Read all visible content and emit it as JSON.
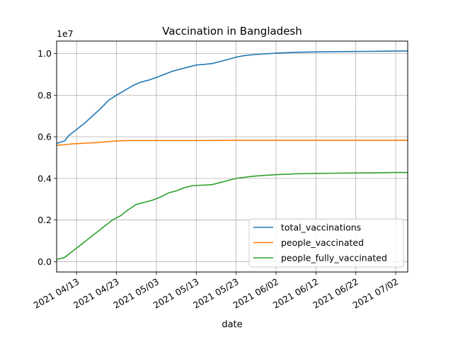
{
  "chart_data": {
    "type": "line",
    "title": "Vaccination in Bangladesh",
    "xlabel": "date",
    "ylabel": "",
    "y_multiplier_label": "1e7",
    "y_scale": 10000000,
    "ylim": [
      -0.05,
      1.06
    ],
    "xlim": [
      "2021-04-08",
      "2021-07-05"
    ],
    "yticks": [
      0.0,
      0.2,
      0.4,
      0.6,
      0.8,
      1.0
    ],
    "ytick_labels": [
      "0.0",
      "0.2",
      "0.4",
      "0.6",
      "0.8",
      "1.0"
    ],
    "xticks": [
      "2021-04-13",
      "2021-04-23",
      "2021-05-03",
      "2021-05-13",
      "2021-05-23",
      "2021-06-02",
      "2021-06-12",
      "2021-06-22",
      "2021-07-02"
    ],
    "xtick_labels": [
      "2021 04/13",
      "2021 04/23",
      "2021 05/03",
      "2021 05/13",
      "2021 05/23",
      "2021 06/02",
      "2021 06/12",
      "2021 06/22",
      "2021 07/02"
    ],
    "grid": true,
    "legend_position": "lower-right",
    "series": [
      {
        "name": "total_vaccinations",
        "color": "#1f77b4",
        "points": [
          [
            "2021-04-08",
            0.568
          ],
          [
            "2021-04-10",
            0.58
          ],
          [
            "2021-04-11",
            0.605
          ],
          [
            "2021-04-13",
            0.635
          ],
          [
            "2021-04-15",
            0.665
          ],
          [
            "2021-04-17",
            0.7
          ],
          [
            "2021-04-19",
            0.735
          ],
          [
            "2021-04-21",
            0.775
          ],
          [
            "2021-04-23",
            0.8
          ],
          [
            "2021-04-25",
            0.822
          ],
          [
            "2021-04-27",
            0.845
          ],
          [
            "2021-04-29",
            0.862
          ],
          [
            "2021-05-01",
            0.872
          ],
          [
            "2021-05-03",
            0.885
          ],
          [
            "2021-05-05",
            0.9
          ],
          [
            "2021-05-07",
            0.915
          ],
          [
            "2021-05-09",
            0.925
          ],
          [
            "2021-05-11",
            0.935
          ],
          [
            "2021-05-13",
            0.945
          ],
          [
            "2021-05-15",
            0.948
          ],
          [
            "2021-05-17",
            0.952
          ],
          [
            "2021-05-19",
            0.962
          ],
          [
            "2021-05-21",
            0.972
          ],
          [
            "2021-05-23",
            0.983
          ],
          [
            "2021-05-25",
            0.99
          ],
          [
            "2021-05-27",
            0.994
          ],
          [
            "2021-05-29",
            0.997
          ],
          [
            "2021-06-02",
            1.002
          ],
          [
            "2021-06-07",
            1.006
          ],
          [
            "2021-06-12",
            1.008
          ],
          [
            "2021-06-17",
            1.009
          ],
          [
            "2021-06-22",
            1.01
          ],
          [
            "2021-06-27",
            1.011
          ],
          [
            "2021-07-02",
            1.012
          ],
          [
            "2021-07-05",
            1.012
          ]
        ]
      },
      {
        "name": "people_vaccinated",
        "color": "#ff7f0e",
        "points": [
          [
            "2021-04-08",
            0.559
          ],
          [
            "2021-04-10",
            0.562
          ],
          [
            "2021-04-12",
            0.566
          ],
          [
            "2021-04-15",
            0.569
          ],
          [
            "2021-04-18",
            0.572
          ],
          [
            "2021-04-21",
            0.577
          ],
          [
            "2021-04-24",
            0.581
          ],
          [
            "2021-04-26",
            0.582
          ],
          [
            "2021-05-03",
            0.582
          ],
          [
            "2021-05-13",
            0.582
          ],
          [
            "2021-05-23",
            0.583
          ],
          [
            "2021-06-02",
            0.583
          ],
          [
            "2021-06-12",
            0.583
          ],
          [
            "2021-06-22",
            0.583
          ],
          [
            "2021-07-02",
            0.583
          ],
          [
            "2021-07-05",
            0.583
          ]
        ]
      },
      {
        "name": "people_fully_vaccinated",
        "color": "#2ca02c",
        "points": [
          [
            "2021-04-08",
            0.01
          ],
          [
            "2021-04-10",
            0.02
          ],
          [
            "2021-04-12",
            0.05
          ],
          [
            "2021-04-14",
            0.08
          ],
          [
            "2021-04-16",
            0.11
          ],
          [
            "2021-04-18",
            0.14
          ],
          [
            "2021-04-20",
            0.17
          ],
          [
            "2021-04-22",
            0.2
          ],
          [
            "2021-04-24",
            0.22
          ],
          [
            "2021-04-26",
            0.25
          ],
          [
            "2021-04-28",
            0.275
          ],
          [
            "2021-04-30",
            0.285
          ],
          [
            "2021-05-02",
            0.295
          ],
          [
            "2021-05-04",
            0.31
          ],
          [
            "2021-05-06",
            0.33
          ],
          [
            "2021-05-08",
            0.34
          ],
          [
            "2021-05-10",
            0.355
          ],
          [
            "2021-05-12",
            0.365
          ],
          [
            "2021-05-15",
            0.368
          ],
          [
            "2021-05-17",
            0.37
          ],
          [
            "2021-05-19",
            0.38
          ],
          [
            "2021-05-21",
            0.39
          ],
          [
            "2021-05-23",
            0.4
          ],
          [
            "2021-05-25",
            0.405
          ],
          [
            "2021-05-27",
            0.41
          ],
          [
            "2021-05-29",
            0.413
          ],
          [
            "2021-06-02",
            0.418
          ],
          [
            "2021-06-07",
            0.422
          ],
          [
            "2021-06-12",
            0.424
          ],
          [
            "2021-06-17",
            0.425
          ],
          [
            "2021-06-22",
            0.426
          ],
          [
            "2021-06-27",
            0.427
          ],
          [
            "2021-07-02",
            0.428
          ],
          [
            "2021-07-05",
            0.428
          ]
        ]
      }
    ]
  }
}
